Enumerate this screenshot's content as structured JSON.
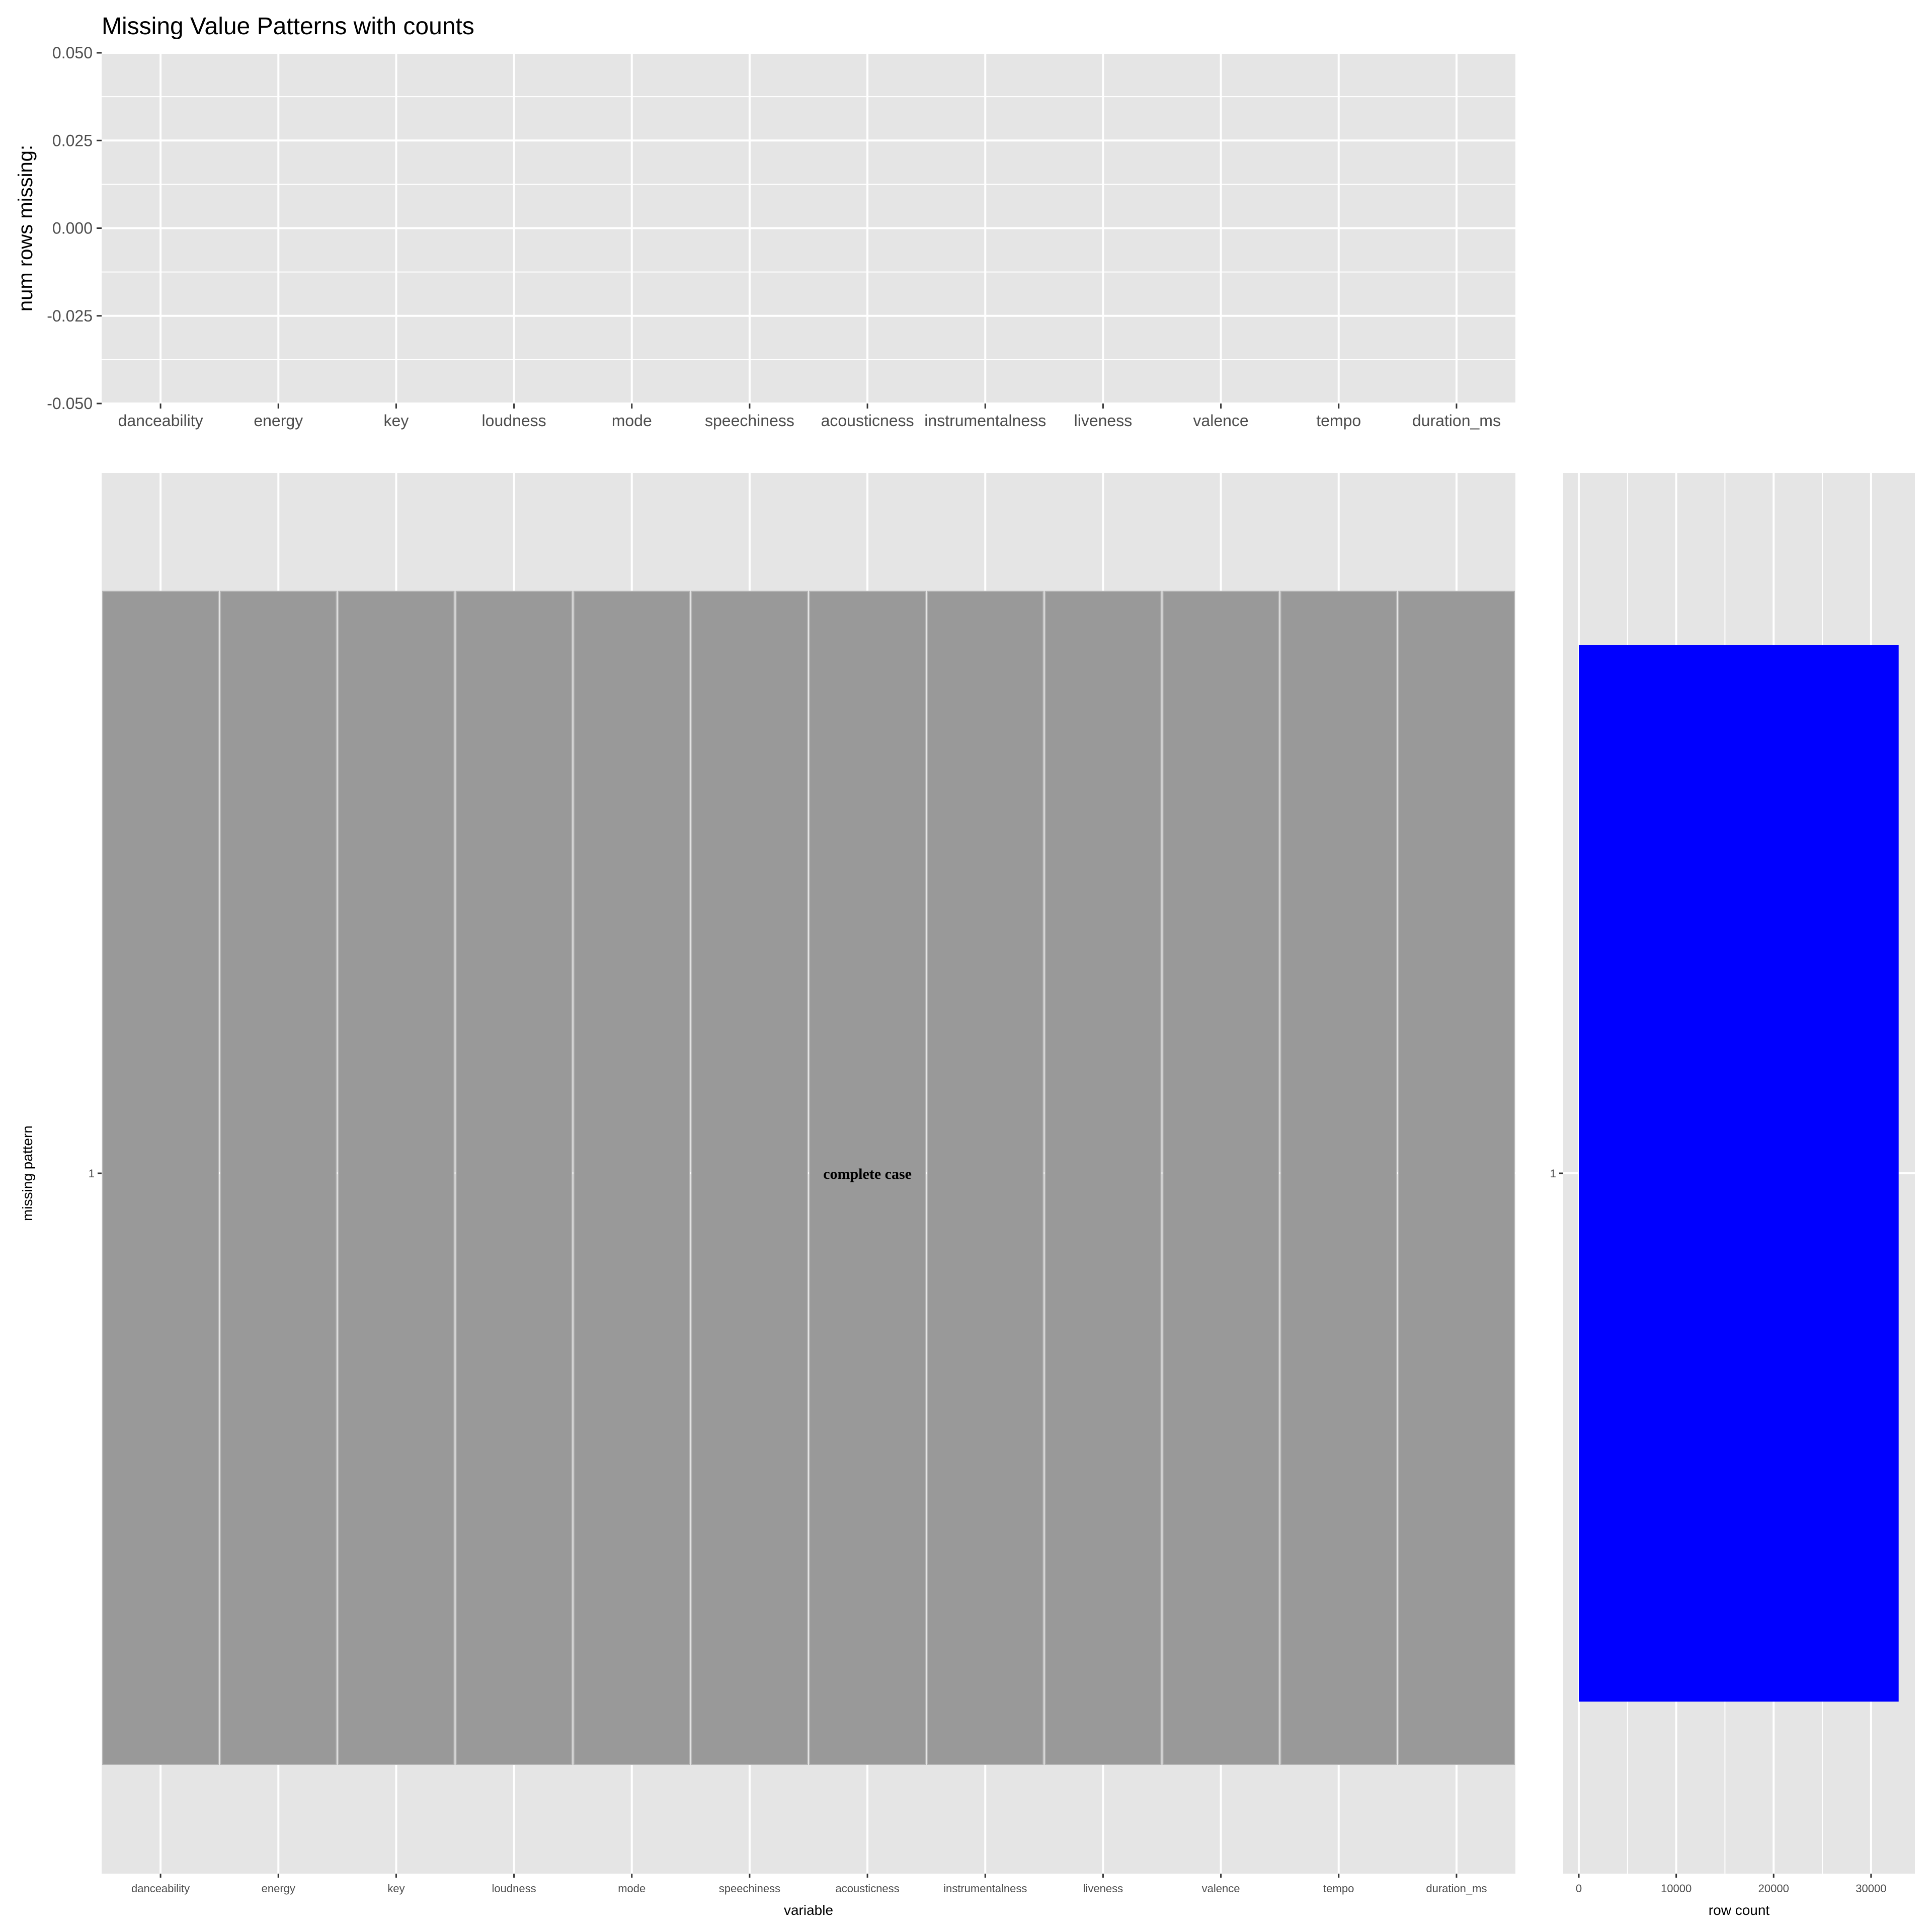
{
  "chart_data": [
    {
      "id": "top",
      "type": "bar",
      "title": "Missing Value Patterns with counts",
      "ylabel": "num rows missing:",
      "xlabel": "",
      "categories": [
        "danceability",
        "energy",
        "key",
        "loudness",
        "mode",
        "speechiness",
        "acousticness",
        "instrumentalness",
        "liveness",
        "valence",
        "tempo",
        "duration_ms"
      ],
      "values": [
        0,
        0,
        0,
        0,
        0,
        0,
        0,
        0,
        0,
        0,
        0,
        0
      ],
      "ylim": [
        -0.05,
        0.05
      ],
      "yticks": [
        0.05,
        0.025,
        0.0,
        -0.025,
        -0.05
      ],
      "ytick_labels": [
        "0.050",
        "0.025",
        "0.000",
        "-0.025",
        "-0.050"
      ],
      "grid": true
    },
    {
      "id": "main",
      "type": "heatmap",
      "xlabel": "variable",
      "ylabel": "missing pattern",
      "categories": [
        "danceability",
        "energy",
        "key",
        "loudness",
        "mode",
        "speechiness",
        "acousticness",
        "instrumentalness",
        "liveness",
        "valence",
        "tempo",
        "duration_ms"
      ],
      "patterns": [
        "1"
      ],
      "cells": [
        [
          0,
          0,
          0,
          0,
          0,
          0,
          0,
          0,
          0,
          0,
          0,
          0
        ]
      ],
      "cell_color": "#999999",
      "annotation": "complete case",
      "grid": true
    },
    {
      "id": "side",
      "type": "bar",
      "orientation": "horizontal",
      "xlabel": "row count",
      "categories": [
        "1"
      ],
      "values": [
        32833
      ],
      "xlim": [
        -1600,
        34500
      ],
      "xticks": [
        0,
        10000,
        20000,
        30000
      ],
      "xtick_labels": [
        "0",
        "10000",
        "20000",
        "30000"
      ],
      "bar_color": "#0000ff",
      "grid": true
    }
  ],
  "colors": {
    "panel_bg": "#e5e5e5",
    "grid_major": "#ffffff",
    "tile_fill": "#999999",
    "bar_fill": "#0000ff",
    "text": "#000000",
    "tick_text": "#4d4d4d"
  }
}
